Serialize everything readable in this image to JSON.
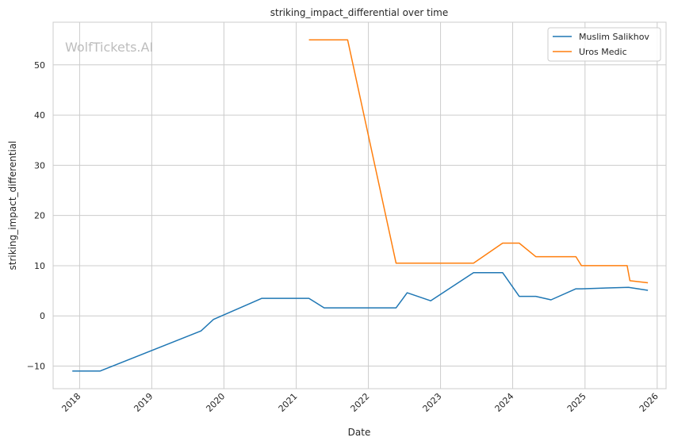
{
  "chart_data": {
    "type": "line",
    "title": "striking_impact_differential over time",
    "xlabel": "Date",
    "ylabel": "striking_impact_differential",
    "watermark": "WolfTickets.AI",
    "legend_position": "top-right",
    "grid": true,
    "xlim": [
      "2017-08-20",
      "2026-02-15"
    ],
    "ylim": [
      -14.5,
      58.5
    ],
    "x_ticks": [
      "2018-01-01",
      "2019-01-01",
      "2020-01-01",
      "2021-01-01",
      "2022-01-01",
      "2023-01-01",
      "2024-01-01",
      "2025-01-01",
      "2026-01-01"
    ],
    "x_tick_labels": [
      "2018",
      "2019",
      "2020",
      "2021",
      "2022",
      "2023",
      "2024",
      "2025",
      "2026"
    ],
    "y_ticks": [
      -10,
      0,
      10,
      20,
      30,
      40,
      50
    ],
    "y_tick_labels": [
      "−10",
      "0",
      "10",
      "20",
      "30",
      "40",
      "50"
    ],
    "series": [
      {
        "name": "Muslim Salikhov",
        "color": "#1f77b4",
        "x": [
          "2017-11-25",
          "2018-04-14",
          "2019-09-07",
          "2019-11-09",
          "2020-07-11",
          "2021-03-06",
          "2021-05-22",
          "2022-05-21",
          "2022-07-16",
          "2022-11-12",
          "2023-06-17",
          "2023-11-11",
          "2024-02-03",
          "2024-04-27",
          "2024-07-13",
          "2024-11-16",
          "2024-12-14",
          "2025-08-09",
          "2025-11-15"
        ],
        "values": [
          -11.0,
          -11.0,
          -3.0,
          -0.7,
          3.5,
          3.5,
          1.6,
          1.6,
          4.6,
          3.0,
          8.6,
          8.6,
          3.9,
          3.9,
          3.2,
          5.4,
          5.4,
          5.7,
          5.1
        ]
      },
      {
        "name": "Uros Medic",
        "color": "#ff7f0e",
        "x": [
          "2021-03-06",
          "2021-09-18",
          "2022-05-21",
          "2023-06-17",
          "2023-11-11",
          "2024-02-03",
          "2024-04-27",
          "2024-11-16",
          "2024-12-14",
          "2025-08-02",
          "2025-08-16",
          "2025-11-15"
        ],
        "values": [
          55.0,
          55.0,
          10.5,
          10.5,
          14.5,
          14.5,
          11.8,
          11.8,
          10.0,
          10.0,
          7.0,
          6.6
        ]
      }
    ]
  }
}
